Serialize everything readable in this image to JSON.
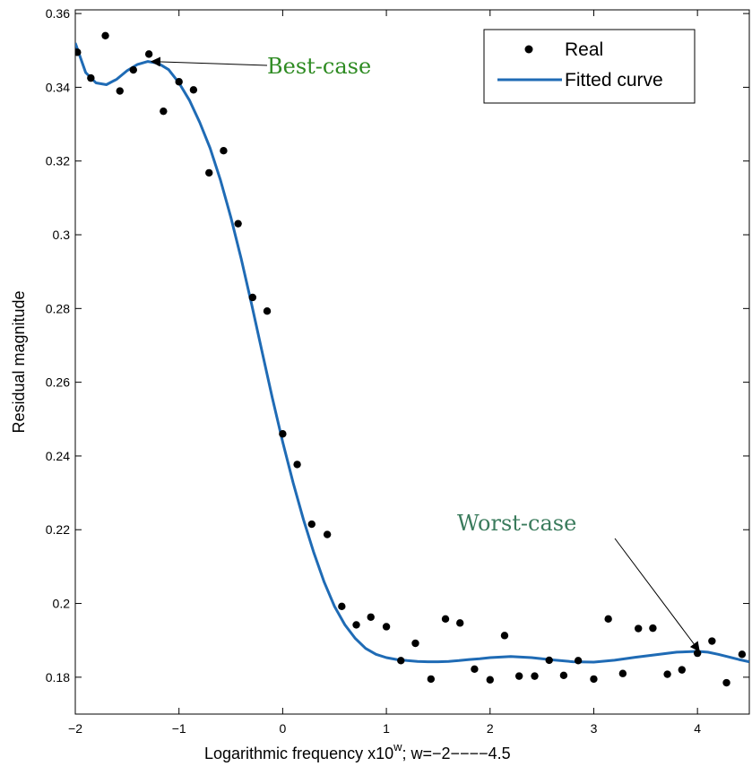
{
  "chart_data": {
    "type": "scatter",
    "xlabel_main": "Logarithmic frequency  x10",
    "xlabel_sup": "w",
    "xlabel_tail": "; w=−2−−−−4.5",
    "ylabel": "Residual magnitude",
    "xlim": [
      -2,
      4.5
    ],
    "ylim": [
      0.17,
      0.361
    ],
    "xticks": [
      -2,
      -1,
      0,
      1,
      2,
      3,
      4
    ],
    "xtick_labels": [
      "−2",
      "−1",
      "0",
      "1",
      "2",
      "3",
      "4"
    ],
    "yticks": [
      0.18,
      0.2,
      0.22,
      0.24,
      0.26,
      0.28,
      0.3,
      0.32,
      0.34,
      0.36
    ],
    "ytick_labels": [
      "0.18",
      "0.2",
      "0.22",
      "0.24",
      "0.26",
      "0.28",
      "0.3",
      "0.32",
      "0.34",
      "0.36"
    ],
    "legend_position": "top-right",
    "series": [
      {
        "name": "Real",
        "kind": "scatter",
        "color": "#000000",
        "x": [
          -1.98,
          -1.85,
          -1.71,
          -1.57,
          -1.44,
          -1.29,
          -1.15,
          -1.0,
          -0.86,
          -0.71,
          -0.57,
          -0.43,
          -0.29,
          -0.15,
          0.0,
          0.14,
          0.28,
          0.43,
          0.57,
          0.71,
          0.85,
          1.0,
          1.14,
          1.28,
          1.43,
          1.57,
          1.71,
          1.85,
          2.0,
          2.14,
          2.28,
          2.43,
          2.57,
          2.71,
          2.85,
          3.0,
          3.14,
          3.28,
          3.43,
          3.57,
          3.71,
          3.85,
          4.0,
          4.14,
          4.28,
          4.43
        ],
        "y": [
          0.3495,
          0.3425,
          0.354,
          0.339,
          0.3447,
          0.349,
          0.3335,
          0.3415,
          0.3393,
          0.3168,
          0.3228,
          0.303,
          0.283,
          0.2793,
          0.246,
          0.2377,
          0.2215,
          0.2187,
          0.1992,
          0.1942,
          0.1963,
          0.1937,
          0.1845,
          0.1892,
          0.1795,
          0.1958,
          0.1947,
          0.1822,
          0.1793,
          0.1913,
          0.1803,
          0.1803,
          0.1846,
          0.1805,
          0.1845,
          0.1795,
          0.1958,
          0.181,
          0.1932,
          0.1933,
          0.1808,
          0.182,
          0.1865,
          0.1898,
          0.1785,
          0.1862
        ]
      },
      {
        "name": "Fitted curve",
        "kind": "line",
        "color": "#1f6bb5",
        "x": [
          -2.0,
          -1.9,
          -1.8,
          -1.7,
          -1.6,
          -1.5,
          -1.4,
          -1.3,
          -1.2,
          -1.1,
          -1.0,
          -0.9,
          -0.8,
          -0.7,
          -0.6,
          -0.5,
          -0.4,
          -0.3,
          -0.2,
          -0.1,
          0.0,
          0.1,
          0.2,
          0.3,
          0.4,
          0.5,
          0.6,
          0.7,
          0.8,
          0.9,
          1.0,
          1.1,
          1.2,
          1.3,
          1.4,
          1.5,
          1.6,
          1.7,
          1.8,
          1.9,
          2.0,
          2.2,
          2.4,
          2.6,
          2.8,
          3.0,
          3.2,
          3.4,
          3.6,
          3.8,
          4.0,
          4.1,
          4.2,
          4.3,
          4.4,
          4.5
        ],
        "y": [
          0.352,
          0.344,
          0.3412,
          0.3407,
          0.3422,
          0.3445,
          0.3462,
          0.347,
          0.3465,
          0.3448,
          0.3412,
          0.3365,
          0.3305,
          0.3235,
          0.3148,
          0.3048,
          0.2935,
          0.2812,
          0.2685,
          0.2558,
          0.2438,
          0.2328,
          0.2228,
          0.2138,
          0.2058,
          0.1992,
          0.1942,
          0.1905,
          0.1878,
          0.1862,
          0.1853,
          0.1848,
          0.1845,
          0.1843,
          0.1842,
          0.1842,
          0.1843,
          0.1845,
          0.1848,
          0.185,
          0.1853,
          0.1856,
          0.1853,
          0.1847,
          0.1842,
          0.1841,
          0.1846,
          0.1854,
          0.1861,
          0.1868,
          0.187,
          0.1868,
          0.1862,
          0.1855,
          0.1848,
          0.1842
        ]
      }
    ],
    "annotations": [
      {
        "text": "Best-case",
        "color": "#2e8b22",
        "target_x": -1.27,
        "target_y": 0.347
      },
      {
        "text": "Worst-case",
        "color": "#3a7b5c",
        "target_x": 4.02,
        "target_y": 0.187
      }
    ]
  }
}
